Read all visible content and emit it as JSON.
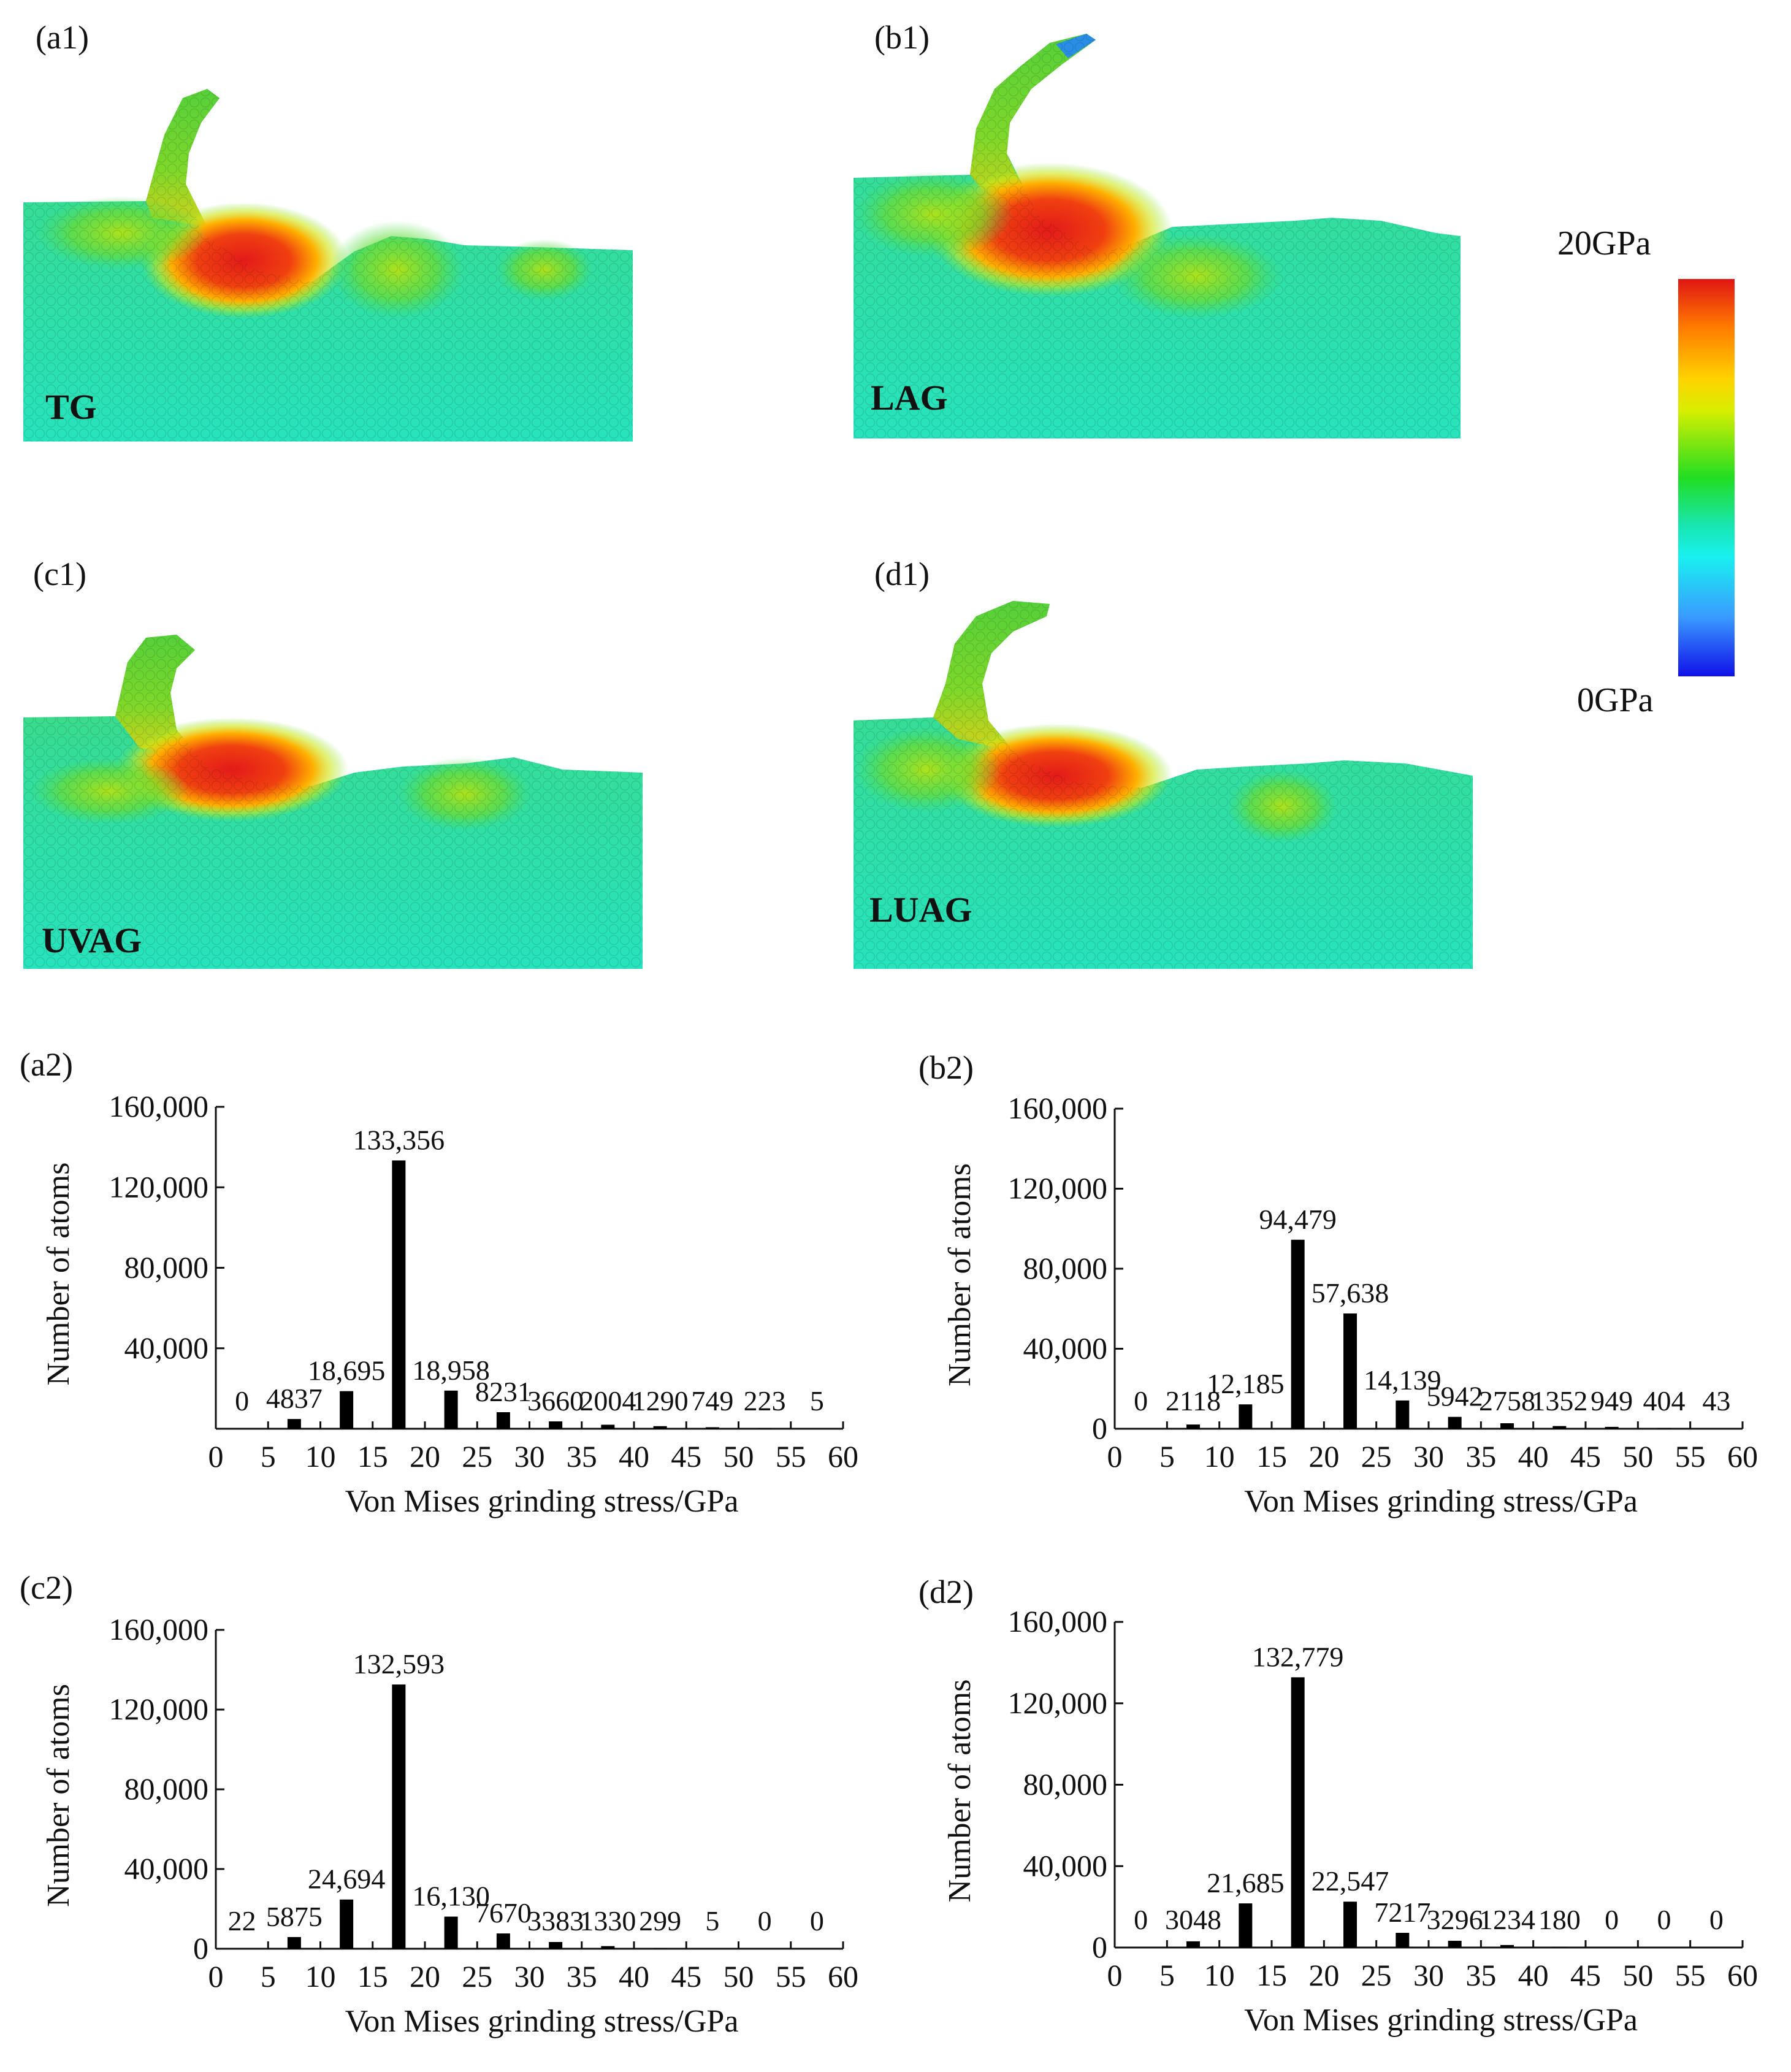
{
  "colorbar": {
    "max_label": "20GPa",
    "min_label": "0GPa"
  },
  "simulations": [
    {
      "panel": "(a1)",
      "method": "TG"
    },
    {
      "panel": "(b1)",
      "method": "LAG"
    },
    {
      "panel": "(c1)",
      "method": "UVAG"
    },
    {
      "panel": "(d1)",
      "method": "LUAG"
    }
  ],
  "chart_data": [
    {
      "panel": "(a2)",
      "type": "bar",
      "xlabel": "Von Mises grinding stress/GPa",
      "ylabel": "Number of atoms",
      "xlim": [
        0,
        60
      ],
      "ylim": [
        0,
        160000
      ],
      "xticks": [
        "0",
        "5",
        "10",
        "15",
        "20",
        "25",
        "30",
        "35",
        "40",
        "45",
        "50",
        "55",
        "60"
      ],
      "yticks": [
        "40,000",
        "80,000",
        "120,000",
        "160,000"
      ],
      "categories": [
        2.5,
        7.5,
        12.5,
        17.5,
        22.5,
        27.5,
        32.5,
        37.5,
        42.5,
        47.5,
        52.5,
        57.5
      ],
      "values": [
        0,
        4837,
        18695,
        133356,
        18958,
        8231,
        3660,
        2004,
        1290,
        749,
        223,
        5
      ],
      "labels": [
        "0",
        "4837",
        "18,695",
        "133,356",
        "18,958",
        "8231",
        "3660",
        "2004",
        "1290",
        "749",
        "223",
        "5"
      ]
    },
    {
      "panel": "(b2)",
      "type": "bar",
      "xlabel": "Von Mises grinding stress/GPa",
      "ylabel": "Number of atoms",
      "xlim": [
        0,
        60
      ],
      "ylim": [
        0,
        160000
      ],
      "xticks": [
        "0",
        "5",
        "10",
        "15",
        "20",
        "25",
        "30",
        "35",
        "40",
        "45",
        "50",
        "55",
        "60"
      ],
      "yticks": [
        "0",
        "40,000",
        "80,000",
        "120,000",
        "160,000"
      ],
      "categories": [
        2.5,
        7.5,
        12.5,
        17.5,
        22.5,
        27.5,
        32.5,
        37.5,
        42.5,
        47.5,
        52.5,
        57.5
      ],
      "values": [
        0,
        2118,
        12185,
        94479,
        57638,
        14139,
        5942,
        2758,
        1352,
        949,
        404,
        43
      ],
      "labels": [
        "0",
        "2118",
        "12,185",
        "94,479",
        "57,638",
        "14,139",
        "5942",
        "2758",
        "1352",
        "949",
        "404",
        "43"
      ]
    },
    {
      "panel": "(c2)",
      "type": "bar",
      "xlabel": "Von Mises grinding stress/GPa",
      "ylabel": "Number of atoms",
      "xlim": [
        0,
        60
      ],
      "ylim": [
        0,
        160000
      ],
      "xticks": [
        "0",
        "5",
        "10",
        "15",
        "20",
        "25",
        "30",
        "35",
        "40",
        "45",
        "50",
        "55",
        "60"
      ],
      "yticks": [
        "0",
        "40,000",
        "80,000",
        "120,000",
        "160,000"
      ],
      "categories": [
        2.5,
        7.5,
        12.5,
        17.5,
        22.5,
        27.5,
        32.5,
        37.5,
        42.5,
        47.5,
        52.5,
        57.5
      ],
      "values": [
        22,
        5875,
        24694,
        132593,
        16130,
        7670,
        3383,
        1330,
        299,
        5,
        0,
        0
      ],
      "labels": [
        "22",
        "5875",
        "24,694",
        "132,593",
        "16,130",
        "7670",
        "3383",
        "1330",
        "299",
        "5",
        "0",
        "0"
      ]
    },
    {
      "panel": "(d2)",
      "type": "bar",
      "xlabel": "Von Mises grinding stress/GPa",
      "ylabel": "Number of atoms",
      "xlim": [
        0,
        60
      ],
      "ylim": [
        0,
        160000
      ],
      "xticks": [
        "0",
        "5",
        "10",
        "15",
        "20",
        "25",
        "30",
        "35",
        "40",
        "45",
        "50",
        "55",
        "60"
      ],
      "yticks": [
        "0",
        "40,000",
        "80,000",
        "120,000",
        "160,000"
      ],
      "categories": [
        2.5,
        7.5,
        12.5,
        17.5,
        22.5,
        27.5,
        32.5,
        37.5,
        42.5,
        47.5,
        52.5,
        57.5
      ],
      "values": [
        0,
        3048,
        21685,
        132779,
        22547,
        7217,
        3296,
        1234,
        180,
        0,
        0,
        0
      ],
      "labels": [
        "0",
        "3048",
        "21,685",
        "132,779",
        "22,547",
        "7217",
        "3296",
        "1234",
        "180",
        "0",
        "0",
        "0"
      ]
    }
  ]
}
